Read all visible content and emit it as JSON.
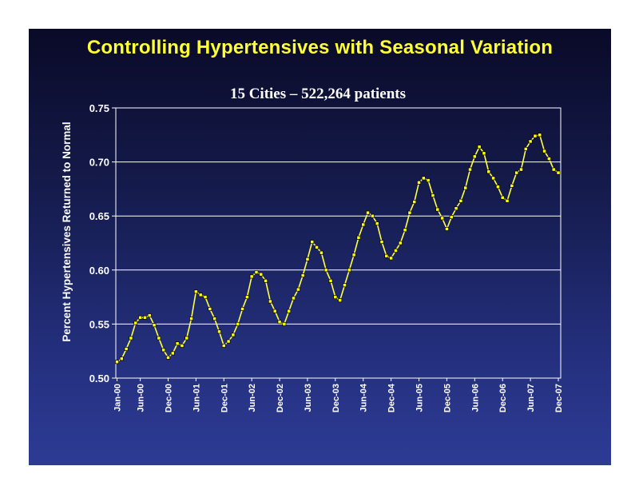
{
  "slide": {
    "title": "Controlling Hypertensives with Seasonal Variation",
    "colors": {
      "title": "#ffff33",
      "line": "#ffff44",
      "marker": "#ffff00",
      "marker_edge": "#000000",
      "grid": "#ffffff"
    }
  },
  "chart_data": {
    "type": "line",
    "title": "15 Cities – 522,264  patients",
    "ylabel": "Percent Hypertensives Returned to Normal",
    "xlabel": "",
    "ylim": [
      0.5,
      0.75
    ],
    "y_ticks": [
      "0.50",
      "0.55",
      "0.60",
      "0.65",
      "0.70",
      "0.75"
    ],
    "grid": "horizontal",
    "x_ticks": [
      {
        "label": "Jan-00",
        "index": 0
      },
      {
        "label": "Jun-00",
        "index": 5
      },
      {
        "label": "Dec-00",
        "index": 11
      },
      {
        "label": "Jun-01",
        "index": 17
      },
      {
        "label": "Dec-01",
        "index": 23
      },
      {
        "label": "Jun-02",
        "index": 29
      },
      {
        "label": "Dec-02",
        "index": 35
      },
      {
        "label": "Jun-03",
        "index": 41
      },
      {
        "label": "Dec-03",
        "index": 47
      },
      {
        "label": "Jun-04",
        "index": 53
      },
      {
        "label": "Dec-04",
        "index": 59
      },
      {
        "label": "Jun-05",
        "index": 65
      },
      {
        "label": "Dec-05",
        "index": 71
      },
      {
        "label": "Jun-06",
        "index": 77
      },
      {
        "label": "Dec-06",
        "index": 83
      },
      {
        "label": "Jun-07",
        "index": 89
      },
      {
        "label": "Dec-07",
        "index": 95
      }
    ],
    "series": [
      {
        "values": [
          0.515,
          0.518,
          0.527,
          0.537,
          0.551,
          0.556,
          0.556,
          0.558,
          0.549,
          0.537,
          0.526,
          0.519,
          0.523,
          0.532,
          0.53,
          0.537,
          0.555,
          0.58,
          0.577,
          0.575,
          0.564,
          0.555,
          0.543,
          0.53,
          0.534,
          0.54,
          0.55,
          0.564,
          0.575,
          0.594,
          0.598,
          0.596,
          0.59,
          0.571,
          0.562,
          0.552,
          0.55,
          0.562,
          0.574,
          0.582,
          0.595,
          0.61,
          0.626,
          0.621,
          0.616,
          0.6,
          0.59,
          0.575,
          0.572,
          0.586,
          0.6,
          0.614,
          0.63,
          0.642,
          0.653,
          0.65,
          0.643,
          0.626,
          0.613,
          0.611,
          0.618,
          0.625,
          0.637,
          0.653,
          0.663,
          0.681,
          0.685,
          0.683,
          0.669,
          0.656,
          0.648,
          0.638,
          0.649,
          0.657,
          0.664,
          0.676,
          0.693,
          0.705,
          0.714,
          0.708,
          0.691,
          0.685,
          0.677,
          0.667,
          0.664,
          0.678,
          0.69,
          0.693,
          0.712,
          0.719,
          0.724,
          0.725,
          0.71,
          0.703,
          0.693,
          0.69
        ]
      }
    ]
  }
}
